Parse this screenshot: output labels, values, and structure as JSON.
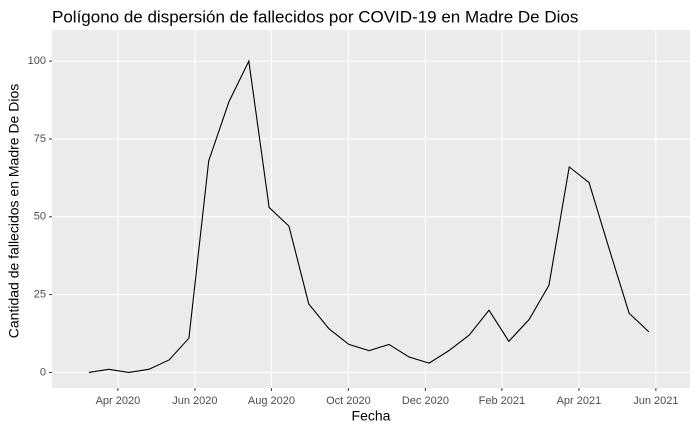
{
  "chart_data": {
    "type": "line",
    "title": "Polígono de dispersión de fallecidos por COVID-19 en Madre De Dios",
    "x_label": "Fecha",
    "y_label": "Cantidad de fallecidos en Madre De Dios",
    "x": [
      2020.187,
      2020.23,
      2020.274,
      2020.317,
      2020.361,
      2020.404,
      2020.447,
      2020.491,
      2020.534,
      2020.578,
      2020.621,
      2020.664,
      2020.708,
      2020.751,
      2020.795,
      2020.838,
      2020.881,
      2020.925,
      2020.968,
      2021.012,
      2021.055,
      2021.098,
      2021.142,
      2021.185,
      2021.229,
      2021.272,
      2021.315,
      2021.359,
      2021.402
    ],
    "series": [
      {
        "name": "fallecidos",
        "color": "#000000",
        "values": [
          0,
          1,
          0,
          1,
          4,
          11,
          68,
          87,
          100,
          53,
          47,
          22,
          14,
          9,
          7,
          9,
          5,
          3,
          7,
          12,
          20,
          10,
          17,
          28,
          66,
          61,
          40,
          19,
          13
        ]
      }
    ],
    "xlim": [
      2020.107,
      2021.491
    ],
    "xticks": [
      {
        "value": 2020.25,
        "label": "Apr 2020"
      },
      {
        "value": 2020.417,
        "label": "Jun 2020"
      },
      {
        "value": 2020.583,
        "label": "Aug 2020"
      },
      {
        "value": 2020.75,
        "label": "Oct 2020"
      },
      {
        "value": 2020.917,
        "label": "Dec 2020"
      },
      {
        "value": 2021.083,
        "label": "Feb 2021"
      },
      {
        "value": 2021.25,
        "label": "Apr 2021"
      },
      {
        "value": 2021.417,
        "label": "Jun 2021"
      }
    ],
    "ylim": [
      -5,
      110
    ],
    "yticks": [
      0,
      25,
      50,
      75,
      100
    ],
    "grid": true,
    "panel_color": "#ebebeb"
  }
}
